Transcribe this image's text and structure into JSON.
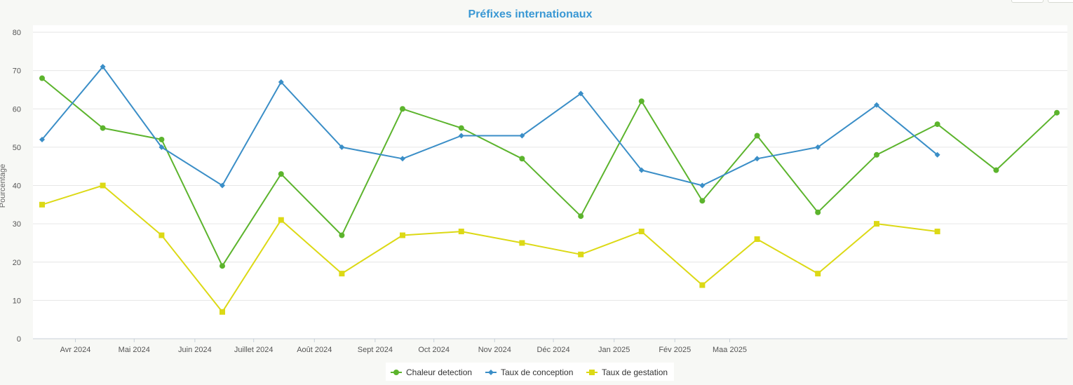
{
  "chart_data": {
    "type": "line",
    "title": "Préfixes internationaux",
    "ylabel": "Pourcentage",
    "xlabel": "",
    "ylim": [
      0,
      80
    ],
    "yticks": [
      0,
      10,
      20,
      30,
      40,
      50,
      60,
      70,
      80
    ],
    "grid": true,
    "legend": "bottom-center",
    "x_ticks": [
      "Avr 2024",
      "Mai 2024",
      "Juin 2024",
      "Juillet 2024",
      "Août 2024",
      "Sept 2024",
      "Oct 2024",
      "Nov 2024",
      "Déc 2024",
      "Jan 2025",
      "Fév 2025",
      "Maa 2025"
    ],
    "x_dates": [
      "2024-03-15",
      "2024-04-15",
      "2024-05-15",
      "2024-06-15",
      "2024-07-15",
      "2024-08-15",
      "2024-09-15",
      "2024-10-15",
      "2024-11-15",
      "2024-12-15",
      "2025-01-15",
      "2025-02-15",
      "2025-03-15",
      "2025-04-15",
      "2025-05-15",
      "2025-06-15",
      "2025-07-15",
      "2025-08-15"
    ],
    "series": [
      {
        "name": "Chaleur detection",
        "color": "#5cb42d",
        "marker": "circle",
        "values": [
          68,
          55,
          52,
          19,
          43,
          27,
          60,
          55,
          47,
          32,
          62,
          36,
          53,
          33,
          48,
          56,
          44,
          59
        ]
      },
      {
        "name": "Taux de conception",
        "color": "#3a8ec7",
        "marker": "diamond",
        "values": [
          52,
          71,
          50,
          40,
          67,
          50,
          47,
          53,
          53,
          64,
          44,
          40,
          47,
          50,
          61,
          48,
          null,
          null
        ]
      },
      {
        "name": "Taux de gestation",
        "color": "#dcd915",
        "marker": "square",
        "values": [
          35,
          40,
          27,
          7,
          31,
          17,
          27,
          28,
          25,
          22,
          28,
          14,
          26,
          17,
          30,
          28,
          null,
          null
        ]
      }
    ]
  }
}
